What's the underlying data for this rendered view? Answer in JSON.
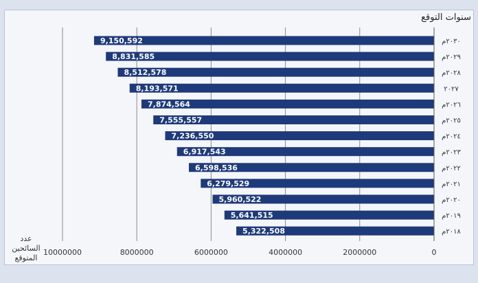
{
  "chart_data": {
    "type": "bar",
    "orientation": "horizontal",
    "title": "سنوات التوقع",
    "xlabel": "عدد السائحين المتوقع",
    "ylabel": "",
    "categories": [
      "٢٠١٨م",
      "٢٠١٩م",
      "٢٠٢٠م",
      "٢٠٢١م",
      "٢٠٢٢م",
      "٢٠٢٣م",
      "٢٠٢٤م",
      "٢٠٢٥م",
      "٢٠٢٦م",
      "٢٠٢٧",
      "٢٠٢٨م",
      "٢٠٢٩م",
      "٢٠٣٠م"
    ],
    "values": [
      5322508,
      5641515,
      5960522,
      6279529,
      6598536,
      6917543,
      7236550,
      7555557,
      7874564,
      8193571,
      8512578,
      8831585,
      9150592
    ],
    "data_labels": [
      "5,322,508",
      "5,641,515",
      "5,960,522",
      "6,279,529",
      "6,598,536",
      "6,917,543",
      "7,236,550",
      "7,555,557",
      "7,874,564",
      "8,193,571",
      "8,512,578",
      "8,831,585",
      "9,150,592"
    ],
    "xlim": [
      0,
      10000000
    ],
    "x_ticks": [
      0,
      2000000,
      4000000,
      6000000,
      8000000,
      10000000
    ],
    "x_tick_labels": [
      "0",
      "2000000",
      "4000000",
      "6000000",
      "8000000",
      "10000000"
    ],
    "x_axis_reversed": true,
    "grid": true,
    "colors": {
      "bar": "#1f3a7a",
      "label_text": "#ffffff",
      "grid": "#8a8a8a",
      "background": "#f4f6fa"
    }
  }
}
